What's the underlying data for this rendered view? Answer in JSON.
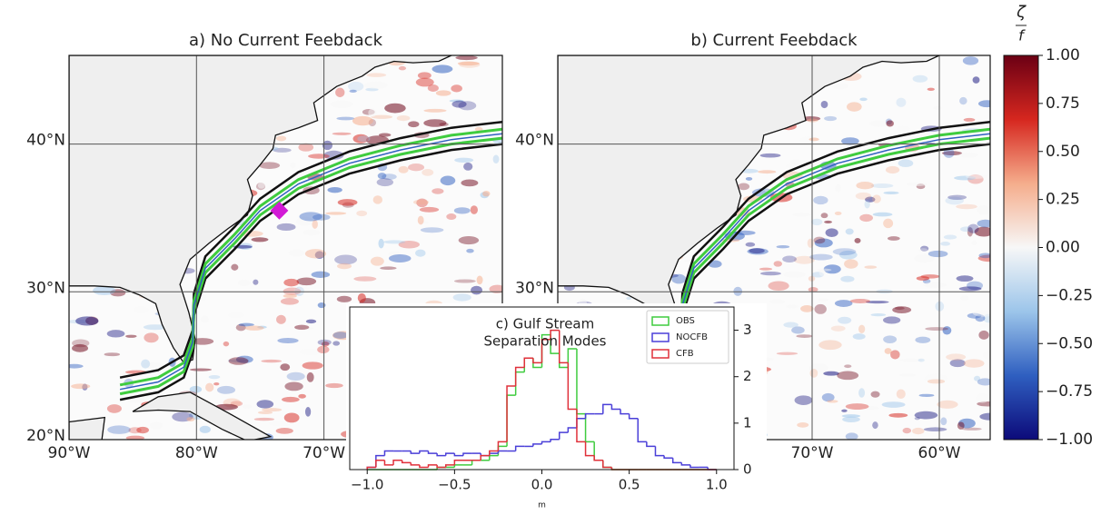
{
  "chart_data": [
    {
      "type": "map",
      "title": "a) No Current Feebdack",
      "xlim": [
        -90,
        -56
      ],
      "ylim": [
        20,
        46
      ],
      "xticks": [
        {
          "value": -90,
          "label": "90°W"
        },
        {
          "value": -80,
          "label": "80°W"
        },
        {
          "value": -70,
          "label": "70°W"
        }
      ],
      "yticks": [
        {
          "value": 20,
          "label": "20°N"
        },
        {
          "value": 30,
          "label": "30°N"
        },
        {
          "value": 40,
          "label": "40°N"
        }
      ],
      "grid": true
    },
    {
      "type": "map",
      "title": "b) Current Feebdack",
      "xlim": [
        -90,
        -56
      ],
      "ylim": [
        20,
        46
      ],
      "xticks": [
        {
          "value": -70,
          "label": "70°W"
        },
        {
          "value": -60,
          "label": "60°W"
        }
      ],
      "yticks": [
        {
          "value": 30,
          "label": "30°N"
        },
        {
          "value": 40,
          "label": "40°N"
        }
      ],
      "grid": true
    },
    {
      "type": "colorbar",
      "label": [
        "ζ",
        "f"
      ],
      "colors": [
        "#0c0a7a",
        "#2f5fc0",
        "#9cc5ea",
        "#f7f7f7",
        "#f5ad8c",
        "#d6271f",
        "#6b0014"
      ],
      "ylim": [
        -1,
        1
      ],
      "yticks": [
        {
          "value": -1,
          "label": "−1.00"
        },
        {
          "value": -0.75,
          "label": "−0.75"
        },
        {
          "value": -0.5,
          "label": "−0.50"
        },
        {
          "value": -0.25,
          "label": "−0.25"
        },
        {
          "value": 0,
          "label": "0.00"
        },
        {
          "value": 0.25,
          "label": "0.25"
        },
        {
          "value": 0.5,
          "label": "0.50"
        },
        {
          "value": 0.75,
          "label": "0.75"
        },
        {
          "value": 1,
          "label": "1.00"
        }
      ]
    },
    {
      "type": "histogram",
      "title": [
        "c) Gulf Stream",
        "Separation Modes"
      ],
      "xlabel": "m",
      "xlim": [
        -1.1,
        1.1
      ],
      "ylim": [
        0,
        3.5
      ],
      "xticks": [
        {
          "value": -1,
          "label": "−1.0"
        },
        {
          "value": -0.5,
          "label": "−0.5"
        },
        {
          "value": 0,
          "label": "0.0"
        },
        {
          "value": 0.5,
          "label": "0.5"
        },
        {
          "value": 1,
          "label": "1.0"
        }
      ],
      "yticks": [
        0,
        1,
        2,
        3
      ],
      "legend": "upper right",
      "bins": [
        -1.0,
        -0.95,
        -0.9,
        -0.85,
        -0.8,
        -0.75,
        -0.7,
        -0.65,
        -0.6,
        -0.55,
        -0.5,
        -0.45,
        -0.4,
        -0.35,
        -0.3,
        -0.25,
        -0.2,
        -0.15,
        -0.1,
        -0.05,
        0.0,
        0.05,
        0.1,
        0.15,
        0.2,
        0.25,
        0.3,
        0.35,
        0.4,
        0.45,
        0.5,
        0.55,
        0.6,
        0.65,
        0.7,
        0.75,
        0.8,
        0.85,
        0.9,
        0.95,
        1.0
      ],
      "series": [
        {
          "name": "OBS",
          "color": "#3fcc3f",
          "values": [
            0,
            0,
            0,
            0,
            0,
            0,
            0,
            0,
            0.05,
            0.05,
            0.1,
            0.1,
            0.2,
            0.2,
            0.3,
            0.5,
            1.6,
            2.1,
            2.4,
            2.2,
            2.9,
            2.5,
            2.2,
            2.6,
            1.2,
            0.6,
            0.2,
            0.05,
            0,
            0,
            0,
            0,
            0,
            0,
            0,
            0,
            0,
            0,
            0,
            0
          ]
        },
        {
          "name": "NOCFB",
          "color": "#4a3fd8",
          "values": [
            0.05,
            0.3,
            0.4,
            0.4,
            0.4,
            0.35,
            0.4,
            0.35,
            0.3,
            0.35,
            0.3,
            0.35,
            0.35,
            0.3,
            0.35,
            0.4,
            0.4,
            0.5,
            0.5,
            0.55,
            0.6,
            0.65,
            0.8,
            0.9,
            1.1,
            1.2,
            1.2,
            1.4,
            1.3,
            1.2,
            1.1,
            0.6,
            0.5,
            0.3,
            0.25,
            0.15,
            0.1,
            0.05,
            0.05,
            0
          ]
        },
        {
          "name": "CFB",
          "color": "#e0303a",
          "values": [
            0.05,
            0.2,
            0.1,
            0.2,
            0.15,
            0.1,
            0.05,
            0.1,
            0.05,
            0.1,
            0.2,
            0.2,
            0.2,
            0.3,
            0.4,
            0.6,
            1.8,
            2.2,
            2.4,
            2.3,
            2.8,
            3.0,
            2.3,
            1.3,
            0.6,
            0.3,
            0.2,
            0.05,
            0,
            0,
            0,
            0,
            0,
            0,
            0,
            0,
            0,
            0,
            0,
            0
          ]
        }
      ]
    }
  ]
}
